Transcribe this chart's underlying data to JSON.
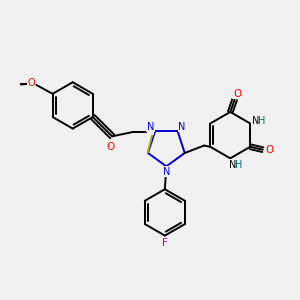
{
  "background_color": "#f0f0f0",
  "bond_color": "#000000",
  "triazole_color": "#0000cc",
  "oxygen_color": "#ff0000",
  "sulfur_color": "#aaaa00",
  "fluorine_color": "#aa00aa",
  "nitrogen_h_color": "#007070",
  "figsize": [
    3.0,
    3.0
  ],
  "dpi": 100,
  "xlim": [
    0,
    10
  ],
  "ylim": [
    0,
    10
  ]
}
